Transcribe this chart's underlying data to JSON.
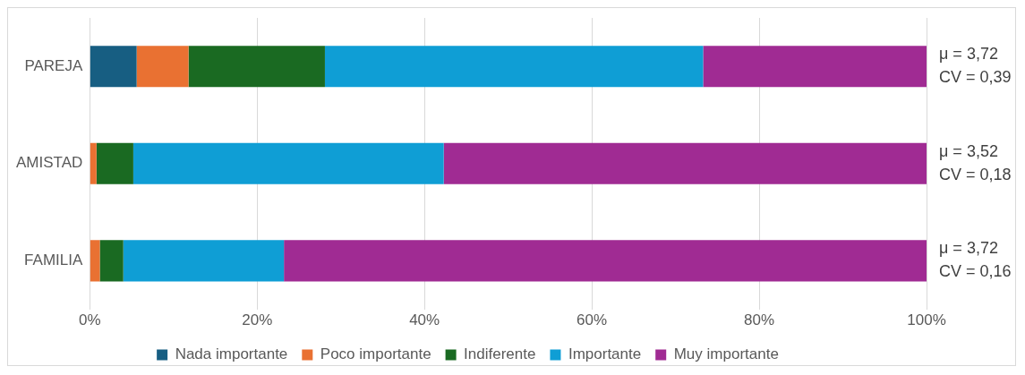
{
  "chart_data": {
    "type": "bar",
    "orientation": "horizontal",
    "stacked": true,
    "categories": [
      "PAREJA",
      "AMISTAD",
      "FAMILIA"
    ],
    "series": [
      {
        "name": "Nada importante",
        "color": "#175e82",
        "values": [
          5.6,
          0,
          0
        ]
      },
      {
        "name": "Poco importante",
        "color": "#e97132",
        "values": [
          6.2,
          0.8,
          1.2
        ]
      },
      {
        "name": "Indiferente",
        "color": "#1a6a22",
        "values": [
          16.3,
          4.4,
          2.8
        ]
      },
      {
        "name": "Importante",
        "color": "#0f9ed5",
        "values": [
          45.2,
          37.1,
          19.2
        ]
      },
      {
        "name": "Muy importante",
        "color": "#a02b93",
        "values": [
          26.7,
          57.7,
          76.8
        ]
      }
    ],
    "xlim": [
      0,
      100
    ],
    "xticks": [
      {
        "value": 0,
        "label": "0%"
      },
      {
        "value": 20,
        "label": "20%"
      },
      {
        "value": 40,
        "label": "40%"
      },
      {
        "value": 60,
        "label": "60%"
      },
      {
        "value": 80,
        "label": "80%"
      },
      {
        "value": 100,
        "label": "100%"
      }
    ],
    "grid": "x",
    "legend": "bottom",
    "annotations": [
      "μ = 3,72",
      "CV = 0,39",
      "μ = 3,52",
      "CV = 0,18",
      "μ = 3,72",
      "CV = 0,16"
    ]
  }
}
